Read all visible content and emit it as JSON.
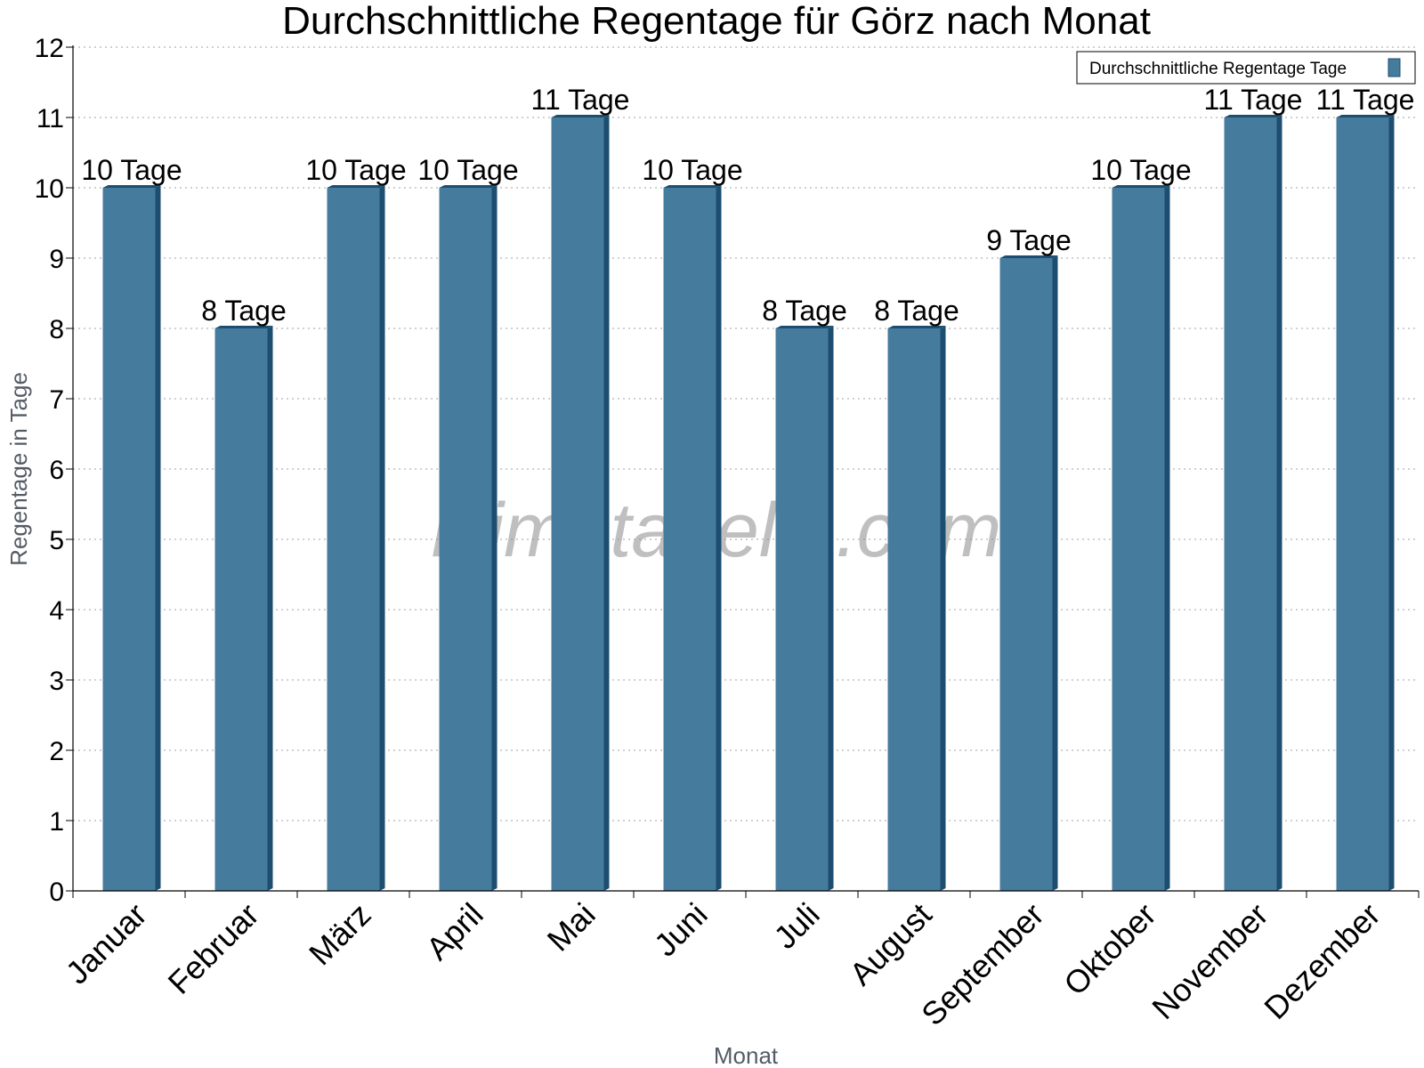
{
  "chart_data": {
    "type": "bar",
    "title": "Durchschnittliche Regentage für Görz nach Monat",
    "xlabel": "Monat",
    "ylabel": "Regentage in Tage",
    "ylim": [
      0,
      12
    ],
    "yticks": [
      0,
      1,
      2,
      3,
      4,
      5,
      6,
      7,
      8,
      9,
      10,
      11,
      12
    ],
    "grid": "horizontal dotted",
    "legend_position": "top-right",
    "categories": [
      "Januar",
      "Februar",
      "März",
      "April",
      "Mai",
      "Juni",
      "Juli",
      "August",
      "September",
      "Oktober",
      "November",
      "Dezember"
    ],
    "series": [
      {
        "name": "Durchschnittliche Regentage Tage",
        "values": [
          10,
          8,
          10,
          10,
          11,
          10,
          8,
          8,
          9,
          10,
          11,
          11
        ],
        "labels": [
          "10 Tage",
          "8 Tage",
          "10 Tage",
          "10 Tage",
          "11 Tage",
          "10 Tage",
          "8 Tage",
          "8 Tage",
          "9 Tage",
          "10 Tage",
          "11 Tage",
          "11 Tage"
        ],
        "color": "#457b9d",
        "shade_color": "#1d4e70"
      }
    ],
    "watermark": "klimatabelle.com"
  }
}
